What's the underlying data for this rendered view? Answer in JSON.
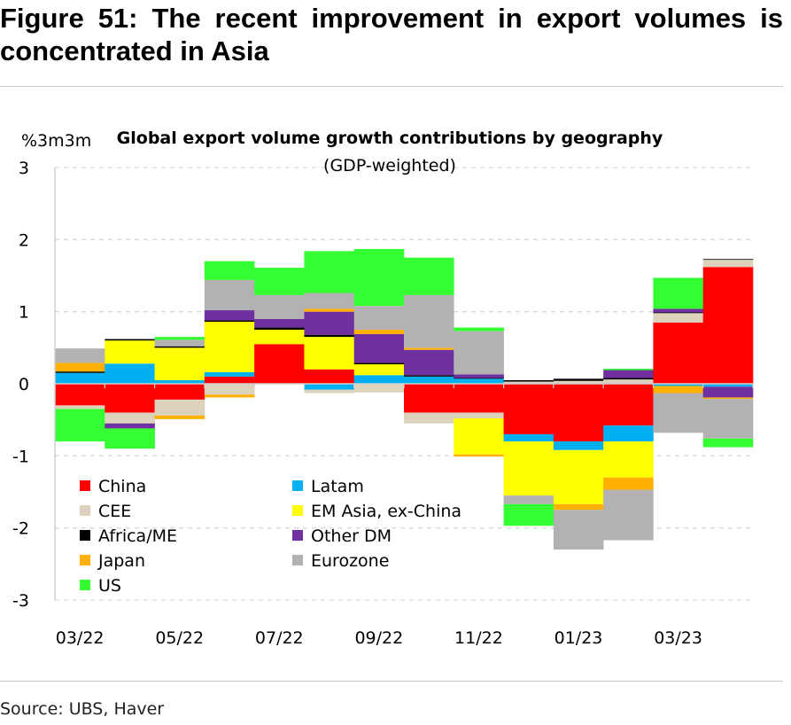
{
  "figure": {
    "title": "Figure 51: The recent improvement in export volumes is concentrated in Asia",
    "source": "Source: UBS, Haver"
  },
  "chart_data": {
    "type": "bar",
    "stacked": true,
    "title": "Global export volume growth contributions by geography",
    "subtitle": "(GDP-weighted)",
    "ylabel": "%3m3m",
    "ylim": [
      -3,
      3
    ],
    "yticks": [
      3,
      2,
      1,
      0,
      -1,
      -2,
      -3
    ],
    "grid": true,
    "legend_position": "bottom-left",
    "x_tick_labels": [
      "03/22",
      "05/22",
      "07/22",
      "09/22",
      "11/22",
      "01/23",
      "03/23"
    ],
    "categories": [
      "03/22",
      "04/22",
      "05/22",
      "06/22",
      "07/22",
      "08/22",
      "09/22",
      "10/22",
      "11/22",
      "12/22",
      "01/23",
      "02/23",
      "03/23",
      "04/23"
    ],
    "series": [
      {
        "name": "China",
        "color": "#ff0000",
        "values": [
          -0.3,
          -0.4,
          -0.22,
          0.1,
          0.55,
          0.2,
          0.0,
          -0.4,
          -0.4,
          -0.7,
          -0.8,
          -0.58,
          0.85,
          1.62
        ]
      },
      {
        "name": "Latam",
        "color": "#00b0f0",
        "values": [
          0.15,
          0.28,
          0.05,
          0.06,
          0.0,
          -0.08,
          0.12,
          0.1,
          0.07,
          -0.1,
          -0.12,
          -0.22,
          -0.03,
          -0.04
        ]
      },
      {
        "name": "CEE",
        "color": "#ddd2bc",
        "values": [
          -0.05,
          -0.15,
          -0.22,
          -0.15,
          0.0,
          -0.05,
          -0.12,
          -0.15,
          -0.08,
          0.03,
          0.04,
          0.06,
          0.13,
          0.1
        ]
      },
      {
        "name": "EM Asia, ex-China",
        "color": "#ffff00",
        "values": [
          0.0,
          0.32,
          0.45,
          0.7,
          0.2,
          0.45,
          0.15,
          0.0,
          -0.5,
          -0.75,
          -0.75,
          -0.5,
          0.0,
          0.0
        ]
      },
      {
        "name": "Africa/ME",
        "color": "#000000",
        "values": [
          0.02,
          0.02,
          0.02,
          0.02,
          0.03,
          0.03,
          0.02,
          0.02,
          0.01,
          0.02,
          0.03,
          0.02,
          0.01,
          0.01
        ]
      },
      {
        "name": "Other DM",
        "color": "#7030a0",
        "values": [
          0.0,
          -0.07,
          0.0,
          0.14,
          0.12,
          0.32,
          0.4,
          0.35,
          0.05,
          0.0,
          0.0,
          0.11,
          0.05,
          -0.15
        ]
      },
      {
        "name": "Japan",
        "color": "#ffb000",
        "values": [
          0.12,
          0.0,
          -0.05,
          -0.04,
          0.0,
          0.04,
          0.06,
          0.03,
          -0.03,
          0.0,
          -0.08,
          -0.17,
          -0.1,
          -0.02
        ]
      },
      {
        "name": "Eurozone",
        "color": "#b2b2b2",
        "values": [
          0.2,
          0.0,
          0.09,
          0.42,
          0.33,
          0.22,
          0.33,
          0.73,
          0.6,
          -0.12,
          -0.55,
          -0.7,
          -0.55,
          -0.55
        ]
      },
      {
        "name": "US",
        "color": "#33ff33",
        "values": [
          -0.45,
          -0.28,
          0.04,
          0.26,
          0.38,
          0.58,
          0.79,
          0.52,
          0.05,
          -0.3,
          0.0,
          0.02,
          0.43,
          -0.12
        ]
      }
    ]
  }
}
